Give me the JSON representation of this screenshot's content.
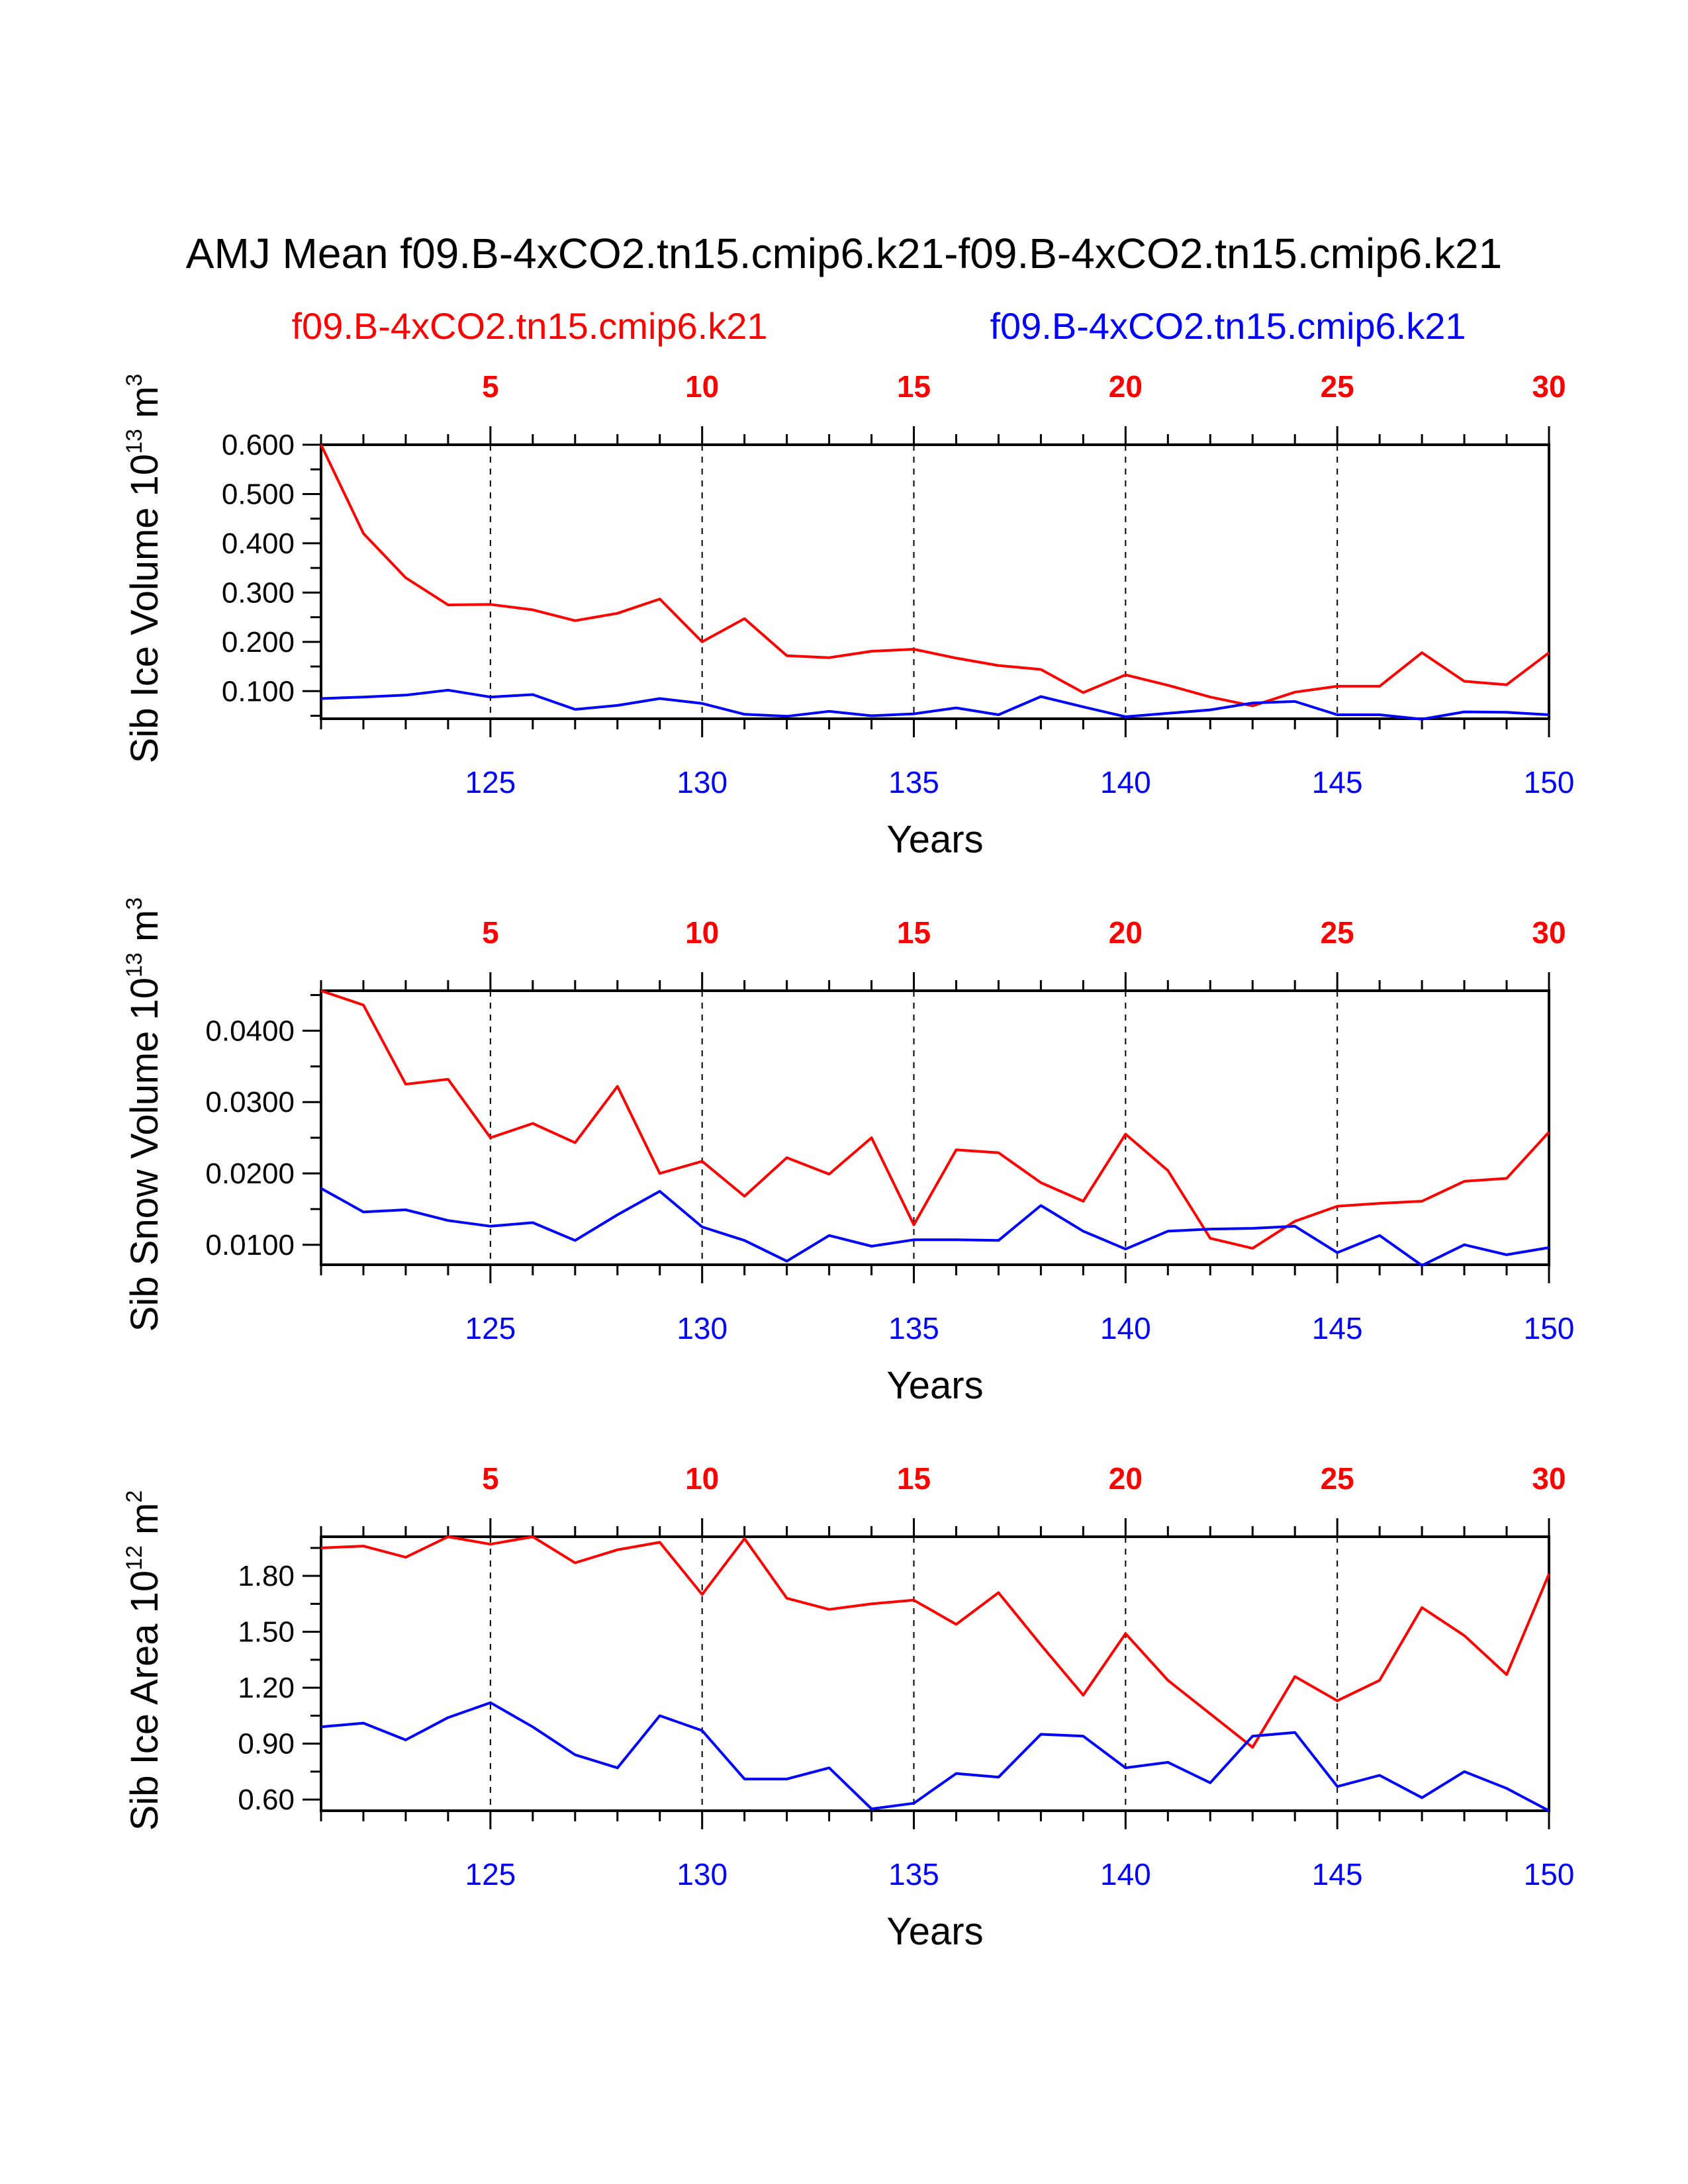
{
  "title": "AMJ Mean f09.B-4xCO2.tn15.cmip6.k21-f09.B-4xCO2.tn15.cmip6.k21",
  "legend": [
    {
      "label": "f09.B-4xCO2.tn15.cmip6.k21",
      "color": "#ff0000"
    },
    {
      "label": "f09.B-4xCO2.tn15.cmip6.k21",
      "color": "#0000ff"
    }
  ],
  "colors": {
    "series_a": "#ff0000",
    "series_b": "#0000ff",
    "axis": "#000000"
  },
  "chart_data": [
    {
      "type": "line",
      "ylabel": "Sib Ice Volume 10",
      "ylabel_exp": "13",
      "ylabel_unit": "m",
      "ylabel_unit_exp": "3",
      "xlabel": "Years",
      "ylim": [
        0.044,
        0.6
      ],
      "yticks": [
        0.1,
        0.2,
        0.3,
        0.4,
        0.5,
        0.6
      ],
      "ytick_labels": [
        "0.100",
        "0.200",
        "0.300",
        "0.400",
        "0.500",
        "0.600"
      ],
      "x_bottom_ticks": [
        125,
        130,
        135,
        140,
        145,
        150
      ],
      "x_top_ticks": [
        5,
        10,
        15,
        20,
        25,
        30
      ],
      "xlim": [
        121,
        150
      ],
      "series": [
        {
          "name": "f09.B-4xCO2.tn15.cmip6.k21",
          "color": "#ff0000",
          "x": [
            121,
            122,
            123,
            124,
            125,
            126,
            127,
            128,
            129,
            130,
            131,
            132,
            133,
            134,
            135,
            136,
            137,
            138,
            139,
            140,
            141,
            142,
            143,
            144,
            145,
            146,
            147,
            148,
            149,
            150
          ],
          "values": [
            0.6,
            0.42,
            0.33,
            0.275,
            0.276,
            0.265,
            0.243,
            0.258,
            0.287,
            0.2,
            0.247,
            0.172,
            0.168,
            0.181,
            0.185,
            0.167,
            0.152,
            0.144,
            0.097,
            0.133,
            0.112,
            0.088,
            0.07,
            0.098,
            0.11,
            0.11,
            0.178,
            0.12,
            0.113,
            0.178
          ]
        },
        {
          "name": "f09.B-4xCO2.tn15.cmip6.k21",
          "color": "#0000ff",
          "x": [
            121,
            122,
            123,
            124,
            125,
            126,
            127,
            128,
            129,
            130,
            131,
            132,
            133,
            134,
            135,
            136,
            137,
            138,
            139,
            140,
            141,
            142,
            143,
            144,
            145,
            146,
            147,
            148,
            149,
            150
          ],
          "values": [
            0.085,
            0.088,
            0.092,
            0.102,
            0.088,
            0.093,
            0.063,
            0.071,
            0.085,
            0.075,
            0.053,
            0.049,
            0.059,
            0.05,
            0.054,
            0.066,
            0.052,
            0.089,
            0.068,
            0.048,
            0.055,
            0.062,
            0.076,
            0.079,
            0.052,
            0.052,
            0.043,
            0.058,
            0.057,
            0.052
          ]
        }
      ]
    },
    {
      "type": "line",
      "ylabel": "Sib Snow Volume 10",
      "ylabel_exp": "13",
      "ylabel_unit": "m",
      "ylabel_unit_exp": "3",
      "xlabel": "Years",
      "ylim": [
        0.0072,
        0.0456
      ],
      "yticks": [
        0.01,
        0.02,
        0.03,
        0.04
      ],
      "ytick_labels": [
        "0.0100",
        "0.0200",
        "0.0300",
        "0.0400"
      ],
      "x_bottom_ticks": [
        125,
        130,
        135,
        140,
        145,
        150
      ],
      "x_top_ticks": [
        5,
        10,
        15,
        20,
        25,
        30
      ],
      "xlim": [
        121,
        150
      ],
      "series": [
        {
          "name": "f09.B-4xCO2.tn15.cmip6.k21",
          "color": "#ff0000",
          "x": [
            121,
            122,
            123,
            124,
            125,
            126,
            127,
            128,
            129,
            130,
            131,
            132,
            133,
            134,
            135,
            136,
            137,
            138,
            139,
            140,
            141,
            142,
            143,
            144,
            145,
            146,
            147,
            148,
            149,
            150
          ],
          "values": [
            0.0456,
            0.0436,
            0.0325,
            0.0332,
            0.025,
            0.027,
            0.0243,
            0.0322,
            0.02,
            0.0217,
            0.0168,
            0.0222,
            0.0199,
            0.025,
            0.0128,
            0.0233,
            0.0229,
            0.0187,
            0.0161,
            0.0255,
            0.0204,
            0.0109,
            0.0095,
            0.0133,
            0.0154,
            0.0158,
            0.0161,
            0.0189,
            0.0193,
            0.0258
          ]
        },
        {
          "name": "f09.B-4xCO2.tn15.cmip6.k21",
          "color": "#0000ff",
          "x": [
            121,
            122,
            123,
            124,
            125,
            126,
            127,
            128,
            129,
            130,
            131,
            132,
            133,
            134,
            135,
            136,
            137,
            138,
            139,
            140,
            141,
            142,
            143,
            144,
            145,
            146,
            147,
            148,
            149,
            150
          ],
          "values": [
            0.0179,
            0.0146,
            0.0149,
            0.0134,
            0.0126,
            0.0131,
            0.0106,
            0.0142,
            0.0175,
            0.0125,
            0.0106,
            0.0077,
            0.0113,
            0.0098,
            0.0107,
            0.0107,
            0.0106,
            0.0155,
            0.0119,
            0.0094,
            0.0119,
            0.0122,
            0.0123,
            0.0126,
            0.0089,
            0.0113,
            0.0071,
            0.01,
            0.0086,
            0.0096
          ]
        }
      ]
    },
    {
      "type": "line",
      "ylabel": "Sib Ice Area 10",
      "ylabel_exp": "12",
      "ylabel_unit": "m",
      "ylabel_unit_exp": "2",
      "xlabel": "Years",
      "ylim": [
        0.54,
        2.01
      ],
      "yticks": [
        0.6,
        0.9,
        1.2,
        1.5,
        1.8
      ],
      "ytick_labels": [
        "0.60",
        "0.90",
        "1.20",
        "1.50",
        "1.80"
      ],
      "x_bottom_ticks": [
        125,
        130,
        135,
        140,
        145,
        150
      ],
      "x_top_ticks": [
        5,
        10,
        15,
        20,
        25,
        30
      ],
      "xlim": [
        121,
        150
      ],
      "series": [
        {
          "name": "f09.B-4xCO2.tn15.cmip6.k21",
          "color": "#ff0000",
          "x": [
            121,
            122,
            123,
            124,
            125,
            126,
            127,
            128,
            129,
            130,
            131,
            132,
            133,
            134,
            135,
            136,
            137,
            138,
            139,
            140,
            141,
            142,
            143,
            144,
            145,
            146,
            147,
            148,
            149,
            150
          ],
          "values": [
            1.95,
            1.96,
            1.9,
            2.01,
            1.97,
            2.01,
            1.87,
            1.94,
            1.98,
            1.7,
            2.0,
            1.68,
            1.62,
            1.65,
            1.67,
            1.54,
            1.71,
            1.43,
            1.16,
            1.49,
            1.24,
            1.06,
            0.88,
            1.26,
            1.13,
            1.24,
            1.63,
            1.48,
            1.27,
            1.81
          ]
        },
        {
          "name": "f09.B-4xCO2.tn15.cmip6.k21",
          "color": "#0000ff",
          "x": [
            121,
            122,
            123,
            124,
            125,
            126,
            127,
            128,
            129,
            130,
            131,
            132,
            133,
            134,
            135,
            136,
            137,
            138,
            139,
            140,
            141,
            142,
            143,
            144,
            145,
            146,
            147,
            148,
            149,
            150
          ],
          "values": [
            0.99,
            1.01,
            0.92,
            1.04,
            1.12,
            0.99,
            0.84,
            0.77,
            1.05,
            0.97,
            0.71,
            0.71,
            0.77,
            0.55,
            0.58,
            0.74,
            0.72,
            0.95,
            0.94,
            0.77,
            0.8,
            0.69,
            0.94,
            0.96,
            0.67,
            0.73,
            0.61,
            0.75,
            0.66,
            0.54
          ]
        }
      ]
    }
  ]
}
